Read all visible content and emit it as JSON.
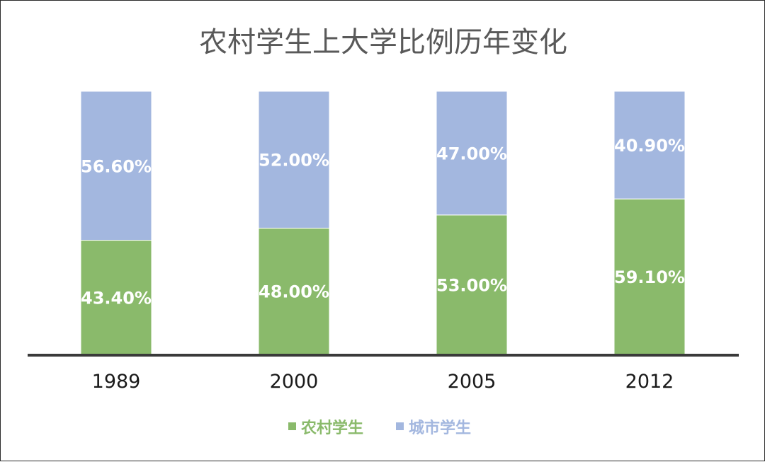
{
  "chart_data": {
    "type": "bar",
    "stacked": true,
    "title": "农村学生上大学比例历年变化",
    "categories": [
      "1989",
      "2000",
      "2005",
      "2012"
    ],
    "series": [
      {
        "name": "农村学生",
        "color": "#8aba6b",
        "values": [
          43.4,
          48.0,
          53.0,
          59.1
        ],
        "labels": [
          "43.40%",
          "48.00%",
          "53.00%",
          "59.10%"
        ]
      },
      {
        "name": "城市学生",
        "color": "#a3b7df",
        "values": [
          56.6,
          52.0,
          47.0,
          40.9
        ],
        "labels": [
          "56.60%",
          "52.00%",
          "47.00%",
          "40.90%"
        ]
      }
    ],
    "ylim": [
      0,
      100
    ],
    "grid": false,
    "legend_position": "bottom"
  }
}
